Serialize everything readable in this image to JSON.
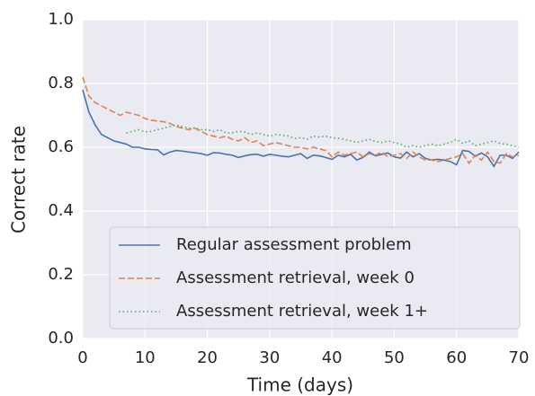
{
  "chart_data": {
    "type": "line",
    "xlabel": "Time (days)",
    "ylabel": "Correct rate",
    "x": [
      0,
      1,
      2,
      3,
      4,
      5,
      6,
      7,
      8,
      9,
      10,
      11,
      12,
      13,
      14,
      15,
      16,
      17,
      18,
      19,
      20,
      21,
      22,
      23,
      24,
      25,
      26,
      27,
      28,
      29,
      30,
      31,
      32,
      33,
      34,
      35,
      36,
      37,
      38,
      39,
      40,
      41,
      42,
      43,
      44,
      45,
      46,
      47,
      48,
      49,
      50,
      51,
      52,
      53,
      54,
      55,
      56,
      57,
      58,
      59,
      60,
      61,
      62,
      63,
      64,
      65,
      66,
      67,
      68,
      69,
      70
    ],
    "series": [
      {
        "name": "Regular assessment problem",
        "color": "#4c72b0",
        "linestyle": "solid",
        "values": [
          0.78,
          0.71,
          0.67,
          0.64,
          0.63,
          0.62,
          0.615,
          0.61,
          0.6,
          0.6,
          0.595,
          0.593,
          0.592,
          0.576,
          0.585,
          0.59,
          0.588,
          0.585,
          0.583,
          0.58,
          0.575,
          0.583,
          0.582,
          0.578,
          0.575,
          0.568,
          0.573,
          0.577,
          0.578,
          0.572,
          0.578,
          0.575,
          0.572,
          0.57,
          0.575,
          0.58,
          0.565,
          0.575,
          0.573,
          0.568,
          0.562,
          0.575,
          0.57,
          0.578,
          0.56,
          0.568,
          0.585,
          0.573,
          0.578,
          0.582,
          0.57,
          0.566,
          0.585,
          0.57,
          0.58,
          0.565,
          0.56,
          0.562,
          0.56,
          0.555,
          0.545,
          0.59,
          0.587,
          0.572,
          0.582,
          0.57,
          0.54,
          0.575,
          0.575,
          0.565,
          0.585
        ]
      },
      {
        "name": "Assessment retrieval, week 0",
        "color": "#dd8452",
        "linestyle": "dashed",
        "values": [
          0.82,
          0.76,
          0.74,
          0.73,
          0.72,
          0.71,
          0.7,
          0.71,
          0.705,
          0.7,
          0.69,
          0.685,
          0.682,
          0.68,
          0.675,
          0.665,
          0.66,
          0.655,
          0.66,
          0.65,
          0.64,
          0.635,
          0.63,
          0.635,
          0.625,
          0.62,
          0.63,
          0.615,
          0.62,
          0.605,
          0.61,
          0.615,
          0.61,
          0.605,
          0.6,
          0.6,
          0.595,
          0.6,
          0.595,
          0.59,
          0.57,
          0.585,
          0.575,
          0.58,
          0.585,
          0.57,
          0.58,
          0.575,
          0.585,
          0.57,
          0.575,
          0.58,
          0.565,
          0.585,
          0.57,
          0.56,
          0.56,
          0.555,
          0.56,
          0.565,
          0.57,
          0.58,
          0.55,
          0.575,
          0.56,
          0.585,
          0.555,
          0.55,
          0.58,
          0.57,
          0.575
        ]
      },
      {
        "name": "Assessment retrieval, week 1+",
        "color": "#55a868",
        "linestyle": "dotted",
        "values": [
          null,
          null,
          null,
          null,
          null,
          null,
          null,
          0.645,
          0.65,
          0.655,
          0.648,
          0.65,
          0.655,
          0.66,
          0.665,
          0.67,
          0.665,
          0.66,
          0.66,
          0.655,
          0.655,
          0.65,
          0.655,
          0.645,
          0.645,
          0.65,
          0.648,
          0.64,
          0.645,
          0.64,
          0.635,
          0.64,
          0.638,
          0.635,
          0.628,
          0.63,
          0.625,
          0.635,
          0.632,
          0.635,
          0.63,
          0.628,
          0.625,
          0.62,
          0.615,
          0.62,
          0.625,
          0.618,
          0.615,
          0.62,
          0.615,
          0.61,
          0.6,
          0.605,
          0.6,
          0.605,
          0.61,
          0.605,
          0.61,
          0.615,
          0.625,
          0.612,
          0.62,
          0.605,
          0.61,
          0.615,
          0.62,
          0.612,
          0.61,
          0.605,
          0.6
        ]
      }
    ],
    "xlim": [
      0,
      70
    ],
    "xticks": [
      0,
      10,
      20,
      30,
      40,
      50,
      60,
      70
    ],
    "ylim": [
      0.0,
      1.0
    ],
    "yticks": [
      {
        "value": 0,
        "label": "0.0"
      },
      0.2,
      0.4,
      0.6,
      0.8,
      {
        "value": 1,
        "label": "1.0"
      }
    ],
    "grid": true,
    "legend": "lower center"
  }
}
